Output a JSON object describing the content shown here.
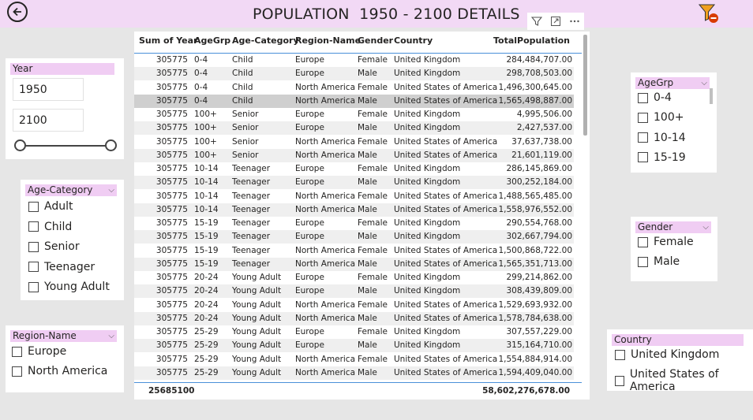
{
  "title": "POPULATION  1950 - 2100 DETAILS",
  "icons": {
    "back": "back-arrow-icon",
    "filter": "filter-icon",
    "focus": "focus-mode-icon",
    "more": "more-options-icon",
    "clear_filter": "clear-filter-icon"
  },
  "colors": {
    "header_band": "#f2d9f5",
    "slicer_header": "#f0cdf3",
    "accent": "#4a90d9"
  },
  "table": {
    "headers": {
      "sum": "Sum of Year",
      "agegrp": "AgeGrp",
      "cat": "Age-Category",
      "region": "Region-Name",
      "gender": "Gender",
      "country": "Country",
      "total": "TotalPopulation"
    },
    "rows": [
      [
        "305775",
        "0-4",
        "Child",
        "Europe",
        "Female",
        "United Kingdom",
        "284,484,707.00"
      ],
      [
        "305775",
        "0-4",
        "Child",
        "Europe",
        "Male",
        "United Kingdom",
        "298,708,503.00"
      ],
      [
        "305775",
        "0-4",
        "Child",
        "North America",
        "Female",
        "United States of America",
        "1,496,300,645.00"
      ],
      [
        "305775",
        "0-4",
        "Child",
        "North America",
        "Male",
        "United States of America",
        "1,565,498,887.00"
      ],
      [
        "305775",
        "100+",
        "Senior",
        "Europe",
        "Female",
        "United Kingdom",
        "4,995,506.00"
      ],
      [
        "305775",
        "100+",
        "Senior",
        "Europe",
        "Male",
        "United Kingdom",
        "2,427,537.00"
      ],
      [
        "305775",
        "100+",
        "Senior",
        "North America",
        "Female",
        "United States of America",
        "37,637,738.00"
      ],
      [
        "305775",
        "100+",
        "Senior",
        "North America",
        "Male",
        "United States of America",
        "21,601,119.00"
      ],
      [
        "305775",
        "10-14",
        "Teenager",
        "Europe",
        "Female",
        "United Kingdom",
        "286,145,869.00"
      ],
      [
        "305775",
        "10-14",
        "Teenager",
        "Europe",
        "Male",
        "United Kingdom",
        "300,252,184.00"
      ],
      [
        "305775",
        "10-14",
        "Teenager",
        "North America",
        "Female",
        "United States of America",
        "1,488,565,485.00"
      ],
      [
        "305775",
        "10-14",
        "Teenager",
        "North America",
        "Male",
        "United States of America",
        "1,558,976,552.00"
      ],
      [
        "305775",
        "15-19",
        "Teenager",
        "Europe",
        "Female",
        "United Kingdom",
        "290,554,768.00"
      ],
      [
        "305775",
        "15-19",
        "Teenager",
        "Europe",
        "Male",
        "United Kingdom",
        "302,667,794.00"
      ],
      [
        "305775",
        "15-19",
        "Teenager",
        "North America",
        "Female",
        "United States of America",
        "1,500,868,722.00"
      ],
      [
        "305775",
        "15-19",
        "Teenager",
        "North America",
        "Male",
        "United States of America",
        "1,565,351,713.00"
      ],
      [
        "305775",
        "20-24",
        "Young Adult",
        "Europe",
        "Female",
        "United Kingdom",
        "299,214,862.00"
      ],
      [
        "305775",
        "20-24",
        "Young Adult",
        "Europe",
        "Male",
        "United Kingdom",
        "308,439,809.00"
      ],
      [
        "305775",
        "20-24",
        "Young Adult",
        "North America",
        "Female",
        "United States of America",
        "1,529,693,932.00"
      ],
      [
        "305775",
        "20-24",
        "Young Adult",
        "North America",
        "Male",
        "United States of America",
        "1,578,784,638.00"
      ],
      [
        "305775",
        "25-29",
        "Young Adult",
        "Europe",
        "Female",
        "United Kingdom",
        "307,557,229.00"
      ],
      [
        "305775",
        "25-29",
        "Young Adult",
        "Europe",
        "Male",
        "United Kingdom",
        "315,164,710.00"
      ],
      [
        "305775",
        "25-29",
        "Young Adult",
        "North America",
        "Female",
        "United States of America",
        "1,554,884,914.00"
      ],
      [
        "305775",
        "25-29",
        "Young Adult",
        "North America",
        "Male",
        "United States of America",
        "1,594,409,040.00"
      ]
    ],
    "selected_row": 3,
    "total": {
      "sum": "25685100",
      "total": "58,602,276,678.00"
    }
  },
  "year_slicer": {
    "label": "Year",
    "start": "1950",
    "end": "2100"
  },
  "age_category_slicer": {
    "label": "Age-Category",
    "items": [
      "Adult",
      "Child",
      "Senior",
      "Teenager",
      "Young Adult"
    ]
  },
  "region_slicer": {
    "label": "Region-Name",
    "items": [
      "Europe",
      "North America"
    ]
  },
  "agegrp_slicer": {
    "label": "AgeGrp",
    "items": [
      "0-4",
      "100+",
      "10-14",
      "15-19"
    ]
  },
  "gender_slicer": {
    "label": "Gender",
    "items": [
      "Female",
      "Male"
    ]
  },
  "country_slicer": {
    "label": "Country",
    "items": [
      "United Kingdom",
      "United States of America"
    ]
  }
}
